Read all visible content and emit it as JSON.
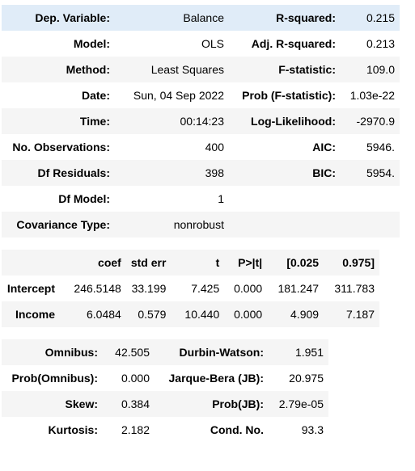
{
  "summary": {
    "rows": [
      {
        "label1": "Dep. Variable:",
        "value1": "Balance",
        "label2": "R-squared:",
        "value2": "0.215"
      },
      {
        "label1": "Model:",
        "value1": "OLS",
        "label2": "Adj. R-squared:",
        "value2": "0.213"
      },
      {
        "label1": "Method:",
        "value1": "Least Squares",
        "label2": "F-statistic:",
        "value2": "109.0"
      },
      {
        "label1": "Date:",
        "value1": "Sun, 04 Sep 2022",
        "label2": "Prob (F-statistic):",
        "value2": "1.03e-22"
      },
      {
        "label1": "Time:",
        "value1": "00:14:23",
        "label2": "Log-Likelihood:",
        "value2": "-2970.9"
      },
      {
        "label1": "No. Observations:",
        "value1": "400",
        "label2": "AIC:",
        "value2": "5946."
      },
      {
        "label1": "Df Residuals:",
        "value1": "398",
        "label2": "BIC:",
        "value2": "5954."
      },
      {
        "label1": "Df Model:",
        "value1": "1",
        "label2": "",
        "value2": ""
      },
      {
        "label1": "Covariance Type:",
        "value1": "nonrobust",
        "label2": "",
        "value2": ""
      }
    ]
  },
  "coefficients": {
    "headers": [
      "",
      "coef",
      "std err",
      "t",
      "P>|t|",
      "[0.025",
      "0.975]"
    ],
    "rows": [
      {
        "name": "Intercept",
        "coef": "246.5148",
        "std_err": "33.199",
        "t": "7.425",
        "p": "0.000",
        "ci_low": "181.247",
        "ci_high": "311.783"
      },
      {
        "name": "Income",
        "coef": "6.0484",
        "std_err": "0.579",
        "t": "10.440",
        "p": "0.000",
        "ci_low": "4.909",
        "ci_high": "7.187"
      }
    ]
  },
  "diagnostics": {
    "rows": [
      {
        "label1": "Omnibus:",
        "value1": "42.505",
        "label2": "Durbin-Watson:",
        "value2": "1.951"
      },
      {
        "label1": "Prob(Omnibus):",
        "value1": "0.000",
        "label2": "Jarque-Bera (JB):",
        "value2": "20.975"
      },
      {
        "label1": "Skew:",
        "value1": "0.384",
        "label2": "Prob(JB):",
        "value2": "2.79e-05"
      },
      {
        "label1": "Kurtosis:",
        "value1": "2.182",
        "label2": "Cond. No.",
        "value2": "93.3"
      }
    ]
  }
}
